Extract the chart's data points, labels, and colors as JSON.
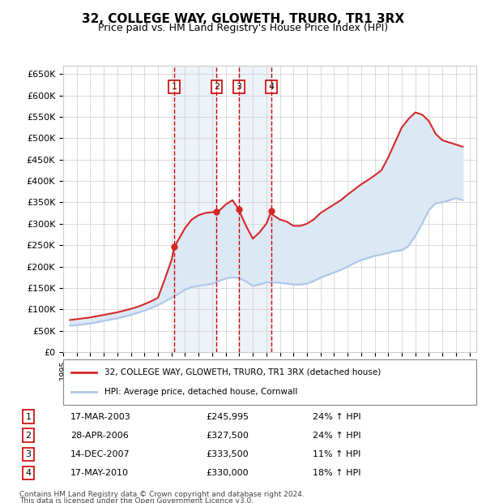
{
  "title": "32, COLLEGE WAY, GLOWETH, TRURO, TR1 3RX",
  "subtitle": "Price paid vs. HM Land Registry's House Price Index (HPI)",
  "hpi_label": "HPI: Average price, detached house, Cornwall",
  "property_label": "32, COLLEGE WAY, GLOWETH, TRURO, TR1 3RX (detached house)",
  "footer1": "Contains HM Land Registry data © Crown copyright and database right 2024.",
  "footer2": "This data is licensed under the Open Government Licence v3.0.",
  "sales": [
    {
      "num": 1,
      "date": "17-MAR-2003",
      "price": 245995,
      "pct": "24%",
      "dir": "↑",
      "year_x": 2003.21
    },
    {
      "num": 2,
      "date": "28-APR-2006",
      "price": 327500,
      "pct": "24%",
      "dir": "↑",
      "year_x": 2006.33
    },
    {
      "num": 3,
      "date": "14-DEC-2007",
      "price": 333500,
      "pct": "11%",
      "dir": "↑",
      "year_x": 2007.96
    },
    {
      "num": 4,
      "date": "17-MAY-2010",
      "price": 330000,
      "pct": "18%",
      "dir": "↑",
      "year_x": 2010.38
    }
  ],
  "hpi_color": "#aec6e8",
  "price_color": "#d62728",
  "sale_marker_color": "#d62728",
  "shade_color": "#dce9f5",
  "grid_color": "#cccccc",
  "sale_box_color": "#cc0000",
  "ylim": [
    0,
    670000
  ],
  "xlim_start": 1995,
  "xlim_end": 2025.5,
  "hpi_data": {
    "years": [
      1995.5,
      1996.0,
      1996.5,
      1997.0,
      1997.5,
      1998.0,
      1998.5,
      1999.0,
      1999.5,
      2000.0,
      2000.5,
      2001.0,
      2001.5,
      2002.0,
      2002.5,
      2003.0,
      2003.5,
      2004.0,
      2004.5,
      2005.0,
      2005.5,
      2006.0,
      2006.5,
      2007.0,
      2007.5,
      2008.0,
      2008.5,
      2009.0,
      2009.5,
      2010.0,
      2010.5,
      2011.0,
      2011.5,
      2012.0,
      2012.5,
      2013.0,
      2013.5,
      2014.0,
      2014.5,
      2015.0,
      2015.5,
      2016.0,
      2016.5,
      2017.0,
      2017.5,
      2018.0,
      2018.5,
      2019.0,
      2019.5,
      2020.0,
      2020.5,
      2021.0,
      2021.5,
      2022.0,
      2022.5,
      2023.0,
      2023.5,
      2024.0,
      2024.5
    ],
    "values": [
      62000,
      63000,
      65000,
      67000,
      70000,
      73000,
      76000,
      79000,
      83000,
      87000,
      92000,
      97000,
      103000,
      110000,
      118000,
      127000,
      136000,
      146000,
      152000,
      155000,
      157000,
      160000,
      166000,
      172000,
      175000,
      173000,
      165000,
      155000,
      158000,
      163000,
      163000,
      162000,
      160000,
      158000,
      158000,
      160000,
      166000,
      174000,
      180000,
      186000,
      192000,
      200000,
      208000,
      215000,
      220000,
      225000,
      228000,
      232000,
      236000,
      238000,
      248000,
      272000,
      300000,
      332000,
      348000,
      350000,
      355000,
      360000,
      355000
    ]
  },
  "price_data": {
    "years": [
      1995.5,
      1996.0,
      1996.5,
      1997.0,
      1997.5,
      1998.0,
      1998.5,
      1999.0,
      1999.5,
      2000.0,
      2000.5,
      2001.0,
      2001.5,
      2002.0,
      2002.5,
      2003.0,
      2003.21,
      2003.5,
      2004.0,
      2004.5,
      2005.0,
      2005.5,
      2006.0,
      2006.33,
      2006.5,
      2007.0,
      2007.5,
      2007.96,
      2008.0,
      2008.5,
      2009.0,
      2009.5,
      2010.0,
      2010.38,
      2010.5,
      2011.0,
      2011.5,
      2012.0,
      2012.5,
      2013.0,
      2013.5,
      2014.0,
      2014.5,
      2015.0,
      2015.5,
      2016.0,
      2016.5,
      2017.0,
      2017.5,
      2018.0,
      2018.5,
      2019.0,
      2019.5,
      2020.0,
      2020.5,
      2021.0,
      2021.5,
      2022.0,
      2022.5,
      2023.0,
      2023.5,
      2024.0,
      2024.5
    ],
    "values": [
      75000,
      77000,
      79000,
      81000,
      84000,
      87000,
      90000,
      93000,
      97000,
      101000,
      106000,
      112000,
      119000,
      127000,
      170000,
      215000,
      245995,
      262000,
      290000,
      310000,
      320000,
      325000,
      327000,
      327500,
      330000,
      345000,
      355000,
      333500,
      330000,
      295000,
      265000,
      280000,
      300000,
      330000,
      320000,
      310000,
      305000,
      295000,
      295000,
      300000,
      310000,
      325000,
      335000,
      345000,
      355000,
      368000,
      380000,
      392000,
      402000,
      413000,
      425000,
      455000,
      490000,
      525000,
      545000,
      560000,
      555000,
      540000,
      510000,
      495000,
      490000,
      485000,
      480000
    ]
  }
}
